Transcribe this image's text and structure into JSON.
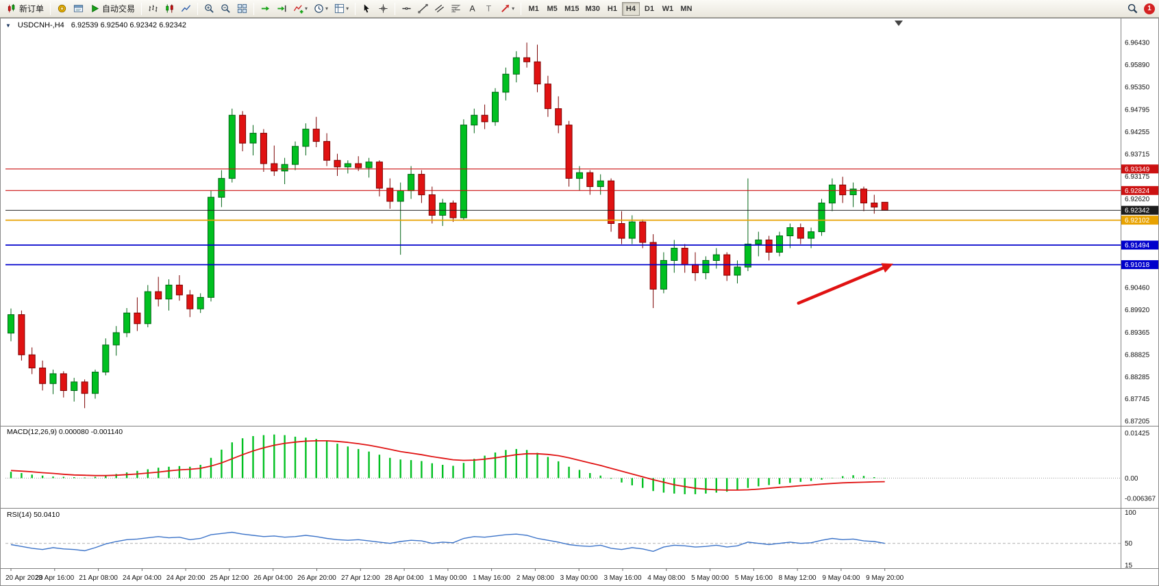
{
  "toolbar": {
    "items": [
      {
        "type": "button",
        "name": "new-order-button",
        "icon": "new-order-icon",
        "label": "新订单"
      },
      {
        "type": "sep"
      },
      {
        "type": "icon",
        "name": "market-watch-button",
        "icon": "market-watch-icon"
      },
      {
        "type": "icon",
        "name": "terminal-button",
        "icon": "terminal-icon"
      },
      {
        "type": "button",
        "name": "auto-trading-button",
        "icon": "auto-trading-icon",
        "label": "自动交易"
      },
      {
        "type": "sep"
      },
      {
        "type": "icon",
        "name": "bar-chart-button",
        "icon": "bar-chart-icon"
      },
      {
        "type": "icon",
        "name": "candlestick-chart-button",
        "icon": "candlestick-chart-icon"
      },
      {
        "type": "icon",
        "name": "line-chart-button",
        "icon": "line-chart-icon"
      },
      {
        "type": "sep"
      },
      {
        "type": "icon",
        "name": "zoom-in-button",
        "icon": "zoom-in-icon"
      },
      {
        "type": "icon",
        "name": "zoom-out-button",
        "icon": "zoom-out-icon"
      },
      {
        "type": "icon",
        "name": "tile-windows-button",
        "icon": "tile-windows-icon"
      },
      {
        "type": "sep"
      },
      {
        "type": "icon",
        "name": "auto-scroll-button",
        "icon": "auto-scroll-icon"
      },
      {
        "type": "icon",
        "name": "chart-shift-button",
        "icon": "chart-shift-icon"
      },
      {
        "type": "icon",
        "name": "indicators-button",
        "icon": "indicators-icon",
        "caret": true
      },
      {
        "type": "icon",
        "name": "periods-button",
        "icon": "periods-clock-icon",
        "caret": true
      },
      {
        "type": "icon",
        "name": "templates-button",
        "icon": "templates-icon",
        "caret": true
      },
      {
        "type": "sep"
      },
      {
        "type": "icon",
        "name": "cursor-button",
        "icon": "cursor-icon"
      },
      {
        "type": "icon",
        "name": "crosshair-button",
        "icon": "crosshair-icon"
      },
      {
        "type": "sep"
      },
      {
        "type": "icon",
        "name": "horizontal-line-button",
        "icon": "hline-icon"
      },
      {
        "type": "icon",
        "name": "trendline-button",
        "icon": "trendline-icon"
      },
      {
        "type": "icon",
        "name": "channel-button",
        "icon": "channel-icon"
      },
      {
        "type": "icon",
        "name": "fibonacci-button",
        "icon": "fibonacci-icon"
      },
      {
        "type": "icon",
        "name": "text-button",
        "icon": "text-icon"
      },
      {
        "type": "icon",
        "name": "text-label-button",
        "icon": "label-icon"
      },
      {
        "type": "icon",
        "name": "arrows-button",
        "icon": "arrows-icon",
        "caret": true
      },
      {
        "type": "sep"
      },
      {
        "type": "tf",
        "label": "M1"
      },
      {
        "type": "tf",
        "label": "M5"
      },
      {
        "type": "tf",
        "label": "M15"
      },
      {
        "type": "tf",
        "label": "M30"
      },
      {
        "type": "tf",
        "label": "H1"
      },
      {
        "type": "tf",
        "label": "H4",
        "active": true
      },
      {
        "type": "tf",
        "label": "D1"
      },
      {
        "type": "tf",
        "label": "W1"
      },
      {
        "type": "tf",
        "label": "MN"
      },
      {
        "type": "spacer"
      },
      {
        "type": "icon",
        "name": "search-button",
        "icon": "search-icon"
      },
      {
        "type": "badge",
        "name": "notification-badge",
        "label": "1"
      }
    ]
  },
  "chart": {
    "symbol_title": "USDCNH-,H4",
    "quotes": "6.92539 6.92540 6.92342 6.92342"
  },
  "panels": {
    "macd_title": "MACD(12,26,9) 0.000080 -0.001140",
    "rsi_title": "RSI(14) 50.0410"
  },
  "chart_data": {
    "type": "candlestick",
    "symbol": "USDCNH-",
    "timeframe": "H4",
    "title": "USDCNH-,H4",
    "quote_ohlc": "6.92539 6.92540 6.92342 6.92342",
    "up_color": "#00c020",
    "down_color": "#e01212",
    "price_axis": {
      "min": 6.8714,
      "max": 6.97,
      "labels": [
        "6.96430",
        "6.95890",
        "6.95350",
        "6.94795",
        "6.94255",
        "6.93715",
        "6.93175",
        "6.92620",
        "6.90460",
        "6.89920",
        "6.89365",
        "6.88825",
        "6.88285",
        "6.87745",
        "6.87205"
      ]
    },
    "x_labels": [
      "20 Apr 2023",
      "20 Apr 16:00",
      "21 Apr 08:00",
      "24 Apr 04:00",
      "24 Apr 20:00",
      "25 Apr 12:00",
      "26 Apr 04:00",
      "26 Apr 20:00",
      "27 Apr 12:00",
      "28 Apr 04:00",
      "1 May 00:00",
      "1 May 16:00",
      "2 May 08:00",
      "3 May 00:00",
      "3 May 16:00",
      "4 May 08:00",
      "5 May 00:00",
      "5 May 16:00",
      "8 May 12:00",
      "9 May 04:00",
      "9 May 20:00"
    ],
    "candles": [
      [
        6.8935,
        6.8995,
        6.8915,
        6.898
      ],
      [
        6.898,
        6.899,
        6.8868,
        6.8882
      ],
      [
        6.8882,
        6.89,
        6.8835,
        6.885
      ],
      [
        6.885,
        6.8868,
        6.8795,
        6.8812
      ],
      [
        6.8812,
        6.8846,
        6.8786,
        6.8836
      ],
      [
        6.8836,
        6.8842,
        6.8778,
        6.8795
      ],
      [
        6.8795,
        6.8826,
        6.8768,
        6.8816
      ],
      [
        6.8816,
        6.8822,
        6.8752,
        6.8788
      ],
      [
        6.8788,
        6.8846,
        6.8775,
        6.884
      ],
      [
        6.884,
        6.8922,
        6.8832,
        6.8906
      ],
      [
        6.8906,
        6.8952,
        6.888,
        6.8936
      ],
      [
        6.8936,
        6.8996,
        6.8925,
        6.8984
      ],
      [
        6.8984,
        6.9022,
        6.894,
        6.8958
      ],
      [
        6.8958,
        6.9052,
        6.8949,
        6.9036
      ],
      [
        6.9036,
        6.9072,
        6.9,
        6.9018
      ],
      [
        6.9018,
        6.9066,
        6.899,
        6.9052
      ],
      [
        6.9052,
        6.9076,
        6.9014,
        6.9028
      ],
      [
        6.9028,
        6.904,
        6.8974,
        6.8994
      ],
      [
        6.8994,
        6.9032,
        6.8984,
        6.9022
      ],
      [
        6.9022,
        6.9282,
        6.9012,
        6.9266
      ],
      [
        6.9266,
        6.9332,
        6.9242,
        6.9312
      ],
      [
        6.9312,
        6.9482,
        6.9302,
        6.9466
      ],
      [
        6.9466,
        6.9476,
        6.9378,
        6.9398
      ],
      [
        6.9398,
        6.9442,
        6.9368,
        6.9422
      ],
      [
        6.9422,
        6.9432,
        6.9328,
        6.9348
      ],
      [
        6.9348,
        6.9392,
        6.9318,
        6.933
      ],
      [
        6.933,
        6.9362,
        6.9298,
        6.9346
      ],
      [
        6.9346,
        6.9402,
        6.9332,
        6.939
      ],
      [
        6.939,
        6.9446,
        6.9368,
        6.9432
      ],
      [
        6.9432,
        6.9462,
        6.9388,
        6.9402
      ],
      [
        6.9402,
        6.9422,
        6.9342,
        6.9356
      ],
      [
        6.9356,
        6.9372,
        6.9318,
        6.934
      ],
      [
        6.934,
        6.9356,
        6.9324,
        6.9348
      ],
      [
        6.9348,
        6.9366,
        6.933,
        6.9338
      ],
      [
        6.9338,
        6.9362,
        6.9314,
        6.9352
      ],
      [
        6.9352,
        6.9356,
        6.9268,
        6.9288
      ],
      [
        6.9288,
        6.9312,
        6.9238,
        6.9256
      ],
      [
        6.9256,
        6.9302,
        6.9126,
        6.9282
      ],
      [
        6.9282,
        6.9342,
        6.9262,
        6.9322
      ],
      [
        6.9322,
        6.9332,
        6.9252,
        6.9272
      ],
      [
        6.9272,
        6.9292,
        6.9202,
        6.9222
      ],
      [
        6.9222,
        6.9262,
        6.9196,
        6.9252
      ],
      [
        6.9252,
        6.9258,
        6.9206,
        6.9216
      ],
      [
        6.9216,
        6.9456,
        6.921,
        6.9442
      ],
      [
        6.9442,
        6.9482,
        6.9422,
        6.9466
      ],
      [
        6.9466,
        6.9492,
        6.9432,
        6.945
      ],
      [
        6.945,
        6.9532,
        6.944,
        6.9522
      ],
      [
        6.9522,
        6.9582,
        6.9502,
        6.9566
      ],
      [
        6.9566,
        6.9622,
        6.9546,
        6.9606
      ],
      [
        6.9606,
        6.9643,
        6.9582,
        6.9596
      ],
      [
        6.9596,
        6.9638,
        6.9522,
        6.9542
      ],
      [
        6.9542,
        6.9562,
        6.9462,
        6.9482
      ],
      [
        6.9482,
        6.9512,
        6.9422,
        6.9442
      ],
      [
        6.9442,
        6.9452,
        6.9292,
        6.9312
      ],
      [
        6.9312,
        6.9342,
        6.9282,
        6.9326
      ],
      [
        6.9326,
        6.9332,
        6.9272,
        6.9292
      ],
      [
        6.9292,
        6.9322,
        6.9272,
        6.9306
      ],
      [
        6.9306,
        6.9312,
        6.9182,
        6.9202
      ],
      [
        6.9202,
        6.9232,
        6.9152,
        6.9166
      ],
      [
        6.9166,
        6.9222,
        6.9152,
        6.9206
      ],
      [
        6.9206,
        6.9212,
        6.9142,
        6.9156
      ],
      [
        6.9156,
        6.9176,
        6.8996,
        6.9042
      ],
      [
        6.9042,
        6.9132,
        6.9032,
        6.9112
      ],
      [
        6.9112,
        6.9162,
        6.9082,
        6.9142
      ],
      [
        6.9142,
        6.9152,
        6.9082,
        6.9102
      ],
      [
        6.9102,
        6.9132,
        6.9062,
        6.9082
      ],
      [
        6.9082,
        6.9122,
        6.9066,
        6.9112
      ],
      [
        6.9112,
        6.9142,
        6.9092,
        6.9126
      ],
      [
        6.9126,
        6.9132,
        6.9062,
        6.9076
      ],
      [
        6.9076,
        6.9112,
        6.9056,
        6.9096
      ],
      [
        6.9096,
        6.9312,
        6.9086,
        6.9152
      ],
      [
        6.9152,
        6.9182,
        6.9122,
        6.9162
      ],
      [
        6.9162,
        6.9172,
        6.9112,
        6.9132
      ],
      [
        6.9132,
        6.9182,
        6.9122,
        6.9172
      ],
      [
        6.9172,
        6.9202,
        6.9142,
        6.9192
      ],
      [
        6.9192,
        6.9202,
        6.9152,
        6.9166
      ],
      [
        6.9166,
        6.9192,
        6.9142,
        6.9182
      ],
      [
        6.9182,
        6.9262,
        6.9172,
        6.9252
      ],
      [
        6.9252,
        6.9312,
        6.9232,
        6.9296
      ],
      [
        6.9296,
        6.9316,
        6.9252,
        6.9272
      ],
      [
        6.9272,
        6.9302,
        6.9242,
        6.9286
      ],
      [
        6.9286,
        6.9292,
        6.9232,
        6.9252
      ],
      [
        6.9252,
        6.9272,
        6.9226,
        6.9242
      ],
      [
        6.92539,
        6.9254,
        6.92342,
        6.92342
      ]
    ],
    "hlines": [
      {
        "price": 6.93349,
        "label": "6.93349",
        "color": "#cc1111",
        "width": 1.2
      },
      {
        "price": 6.92824,
        "label": "6.92824",
        "color": "#cc1111",
        "width": 1.2
      },
      {
        "price": 6.92102,
        "label": "6.92102",
        "color": "#e8a200",
        "width": 1.8
      },
      {
        "price": 6.91494,
        "label": "6.91494",
        "color": "#0000cc",
        "width": 1.8
      },
      {
        "price": 6.91018,
        "label": "6.91018",
        "color": "#0000cc",
        "width": 1.8
      }
    ],
    "current_price": {
      "price": 6.92342,
      "label": "6.92342",
      "color": "#1c1c1c"
    },
    "arrow_annotation": {
      "from": {
        "index": 74.8,
        "price": 6.9008
      },
      "to": {
        "index": 83.8,
        "price": 6.9104
      },
      "color": "#e01212"
    },
    "macd": {
      "label": "MACD(12,26,9)",
      "value_main": "0.000080",
      "value_signal": "-0.001140",
      "hist_color": "#00c020",
      "signal_color": "#e01212",
      "display_range": [
        -0.0088,
        0.0159
      ],
      "axis_labels": [
        {
          "v": 0.01425,
          "t": "0.01425"
        },
        {
          "v": 0,
          "t": "0.00"
        },
        {
          "v": -0.006367,
          "t": "-0.006367"
        }
      ],
      "histogram": [
        0.002,
        0.0016,
        0.0011,
        0.0008,
        0.0005,
        0.0004,
        0.0003,
        0.0002,
        0.0004,
        0.0008,
        0.0013,
        0.0018,
        0.0023,
        0.0028,
        0.0033,
        0.0036,
        0.0038,
        0.0036,
        0.0042,
        0.0064,
        0.009,
        0.0113,
        0.0126,
        0.0133,
        0.0136,
        0.0138,
        0.0136,
        0.0131,
        0.0128,
        0.0124,
        0.0117,
        0.0109,
        0.01,
        0.0092,
        0.0084,
        0.0074,
        0.0064,
        0.0059,
        0.0057,
        0.0054,
        0.0047,
        0.0042,
        0.0039,
        0.0048,
        0.0061,
        0.0071,
        0.0081,
        0.0089,
        0.0092,
        0.0089,
        0.008,
        0.0067,
        0.0053,
        0.0036,
        0.0026,
        0.0016,
        0.0008,
        -0.0002,
        -0.0014,
        -0.0023,
        -0.0031,
        -0.0041,
        -0.0046,
        -0.0049,
        -0.0051,
        -0.0051,
        -0.0049,
        -0.0046,
        -0.0043,
        -0.0038,
        -0.0031,
        -0.0026,
        -0.0022,
        -0.0019,
        -0.0015,
        -0.0012,
        -0.0009,
        -0.0005,
        0.0001,
        0.0006,
        0.0009,
        0.0007,
        0.0003,
        8e-05
      ],
      "signal": [
        0.0024,
        0.0022,
        0.002,
        0.0017,
        0.0015,
        0.0012,
        0.001,
        0.0009,
        0.0008,
        0.0008,
        0.0009,
        0.0011,
        0.0013,
        0.0016,
        0.0019,
        0.0023,
        0.0026,
        0.0028,
        0.0031,
        0.0038,
        0.0048,
        0.0061,
        0.0074,
        0.0086,
        0.0096,
        0.0104,
        0.011,
        0.0114,
        0.0117,
        0.0118,
        0.0118,
        0.0116,
        0.0113,
        0.0109,
        0.0104,
        0.0098,
        0.0091,
        0.0084,
        0.0079,
        0.0074,
        0.0068,
        0.0063,
        0.0058,
        0.0056,
        0.0057,
        0.006,
        0.0064,
        0.0069,
        0.0074,
        0.0077,
        0.0077,
        0.0075,
        0.0071,
        0.0064,
        0.0056,
        0.0048,
        0.004,
        0.0031,
        0.0022,
        0.0013,
        0.0004,
        -0.0005,
        -0.0013,
        -0.0021,
        -0.0027,
        -0.0032,
        -0.0035,
        -0.0037,
        -0.0038,
        -0.0038,
        -0.0037,
        -0.0035,
        -0.0032,
        -0.0029,
        -0.0027,
        -0.0024,
        -0.0022,
        -0.0019,
        -0.0017,
        -0.0015,
        -0.0014,
        -0.0013,
        -0.0012,
        -0.00114
      ]
    },
    "rsi": {
      "label": "RSI(14)",
      "value": "50.0410",
      "line_color": "#3a72c8",
      "level": 50,
      "display_range": [
        12,
        104
      ],
      "axis_labels": [
        {
          "v": 100,
          "t": "100"
        },
        {
          "v": 50,
          "t": "50"
        },
        {
          "v": 15,
          "t": "15"
        }
      ],
      "values": [
        48,
        45,
        42,
        40,
        43,
        41,
        40,
        38,
        43,
        49,
        53,
        56,
        57,
        59,
        61,
        59,
        60,
        56,
        58,
        64,
        66,
        68,
        65,
        63,
        61,
        62,
        60,
        61,
        63,
        61,
        58,
        56,
        55,
        56,
        54,
        52,
        50,
        53,
        55,
        54,
        50,
        52,
        51,
        58,
        61,
        60,
        62,
        64,
        65,
        63,
        58,
        55,
        52,
        48,
        46,
        45,
        47,
        42,
        40,
        43,
        41,
        37,
        44,
        47,
        46,
        44,
        45,
        47,
        44,
        46,
        52,
        50,
        48,
        50,
        52,
        50,
        51,
        55,
        58,
        56,
        57,
        54,
        53,
        50.04
      ]
    }
  }
}
